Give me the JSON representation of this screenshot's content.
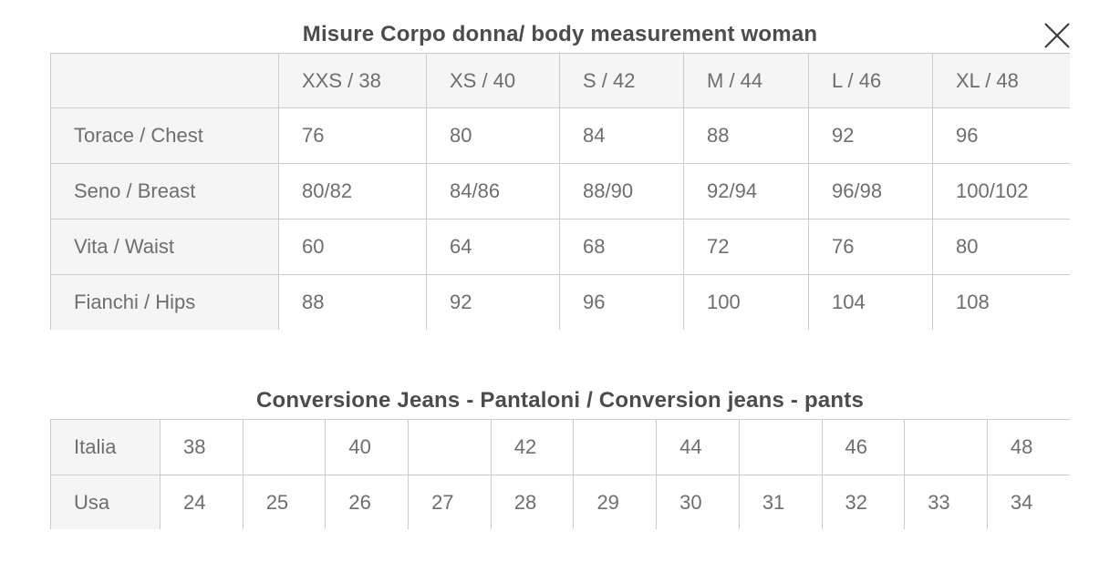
{
  "modal": {
    "name": "size-guide"
  },
  "close": {
    "label": "close"
  },
  "body_table": {
    "title": "Misure Corpo donna/ body measurement woman",
    "headers": [
      "",
      "XXS / 38",
      "XS / 40",
      "S / 42",
      "M / 44",
      "L / 46",
      "XL / 48"
    ],
    "rows": [
      {
        "label": "Torace / Chest",
        "values": [
          "76",
          "80",
          "84",
          "88",
          "92",
          "96"
        ]
      },
      {
        "label": "Seno / Breast",
        "values": [
          "80/82",
          "84/86",
          "88/90",
          "92/94",
          "96/98",
          "100/102"
        ]
      },
      {
        "label": "Vita / Waist",
        "values": [
          "60",
          "64",
          "68",
          "72",
          "76",
          "80"
        ]
      },
      {
        "label": "Fianchi / Hips",
        "values": [
          "88",
          "92",
          "96",
          "100",
          "104",
          "108"
        ]
      }
    ]
  },
  "jeans_table": {
    "title": "Conversione Jeans - Pantaloni / Conversion jeans - pants",
    "rows": [
      {
        "label": "Italia",
        "values": [
          "38",
          "",
          "40",
          "",
          "42",
          "",
          "44",
          "",
          "46",
          "",
          "48"
        ]
      },
      {
        "label": "Usa",
        "values": [
          "24",
          "25",
          "26",
          "27",
          "28",
          "29",
          "30",
          "31",
          "32",
          "33",
          "34"
        ]
      }
    ]
  },
  "colors": {
    "cell_bg": "#f5f5f5",
    "border": "#cccccc",
    "cell_text": "#6e6e6e",
    "title_text": "#4c4c4c",
    "close_icon": "#3c3c3c"
  }
}
